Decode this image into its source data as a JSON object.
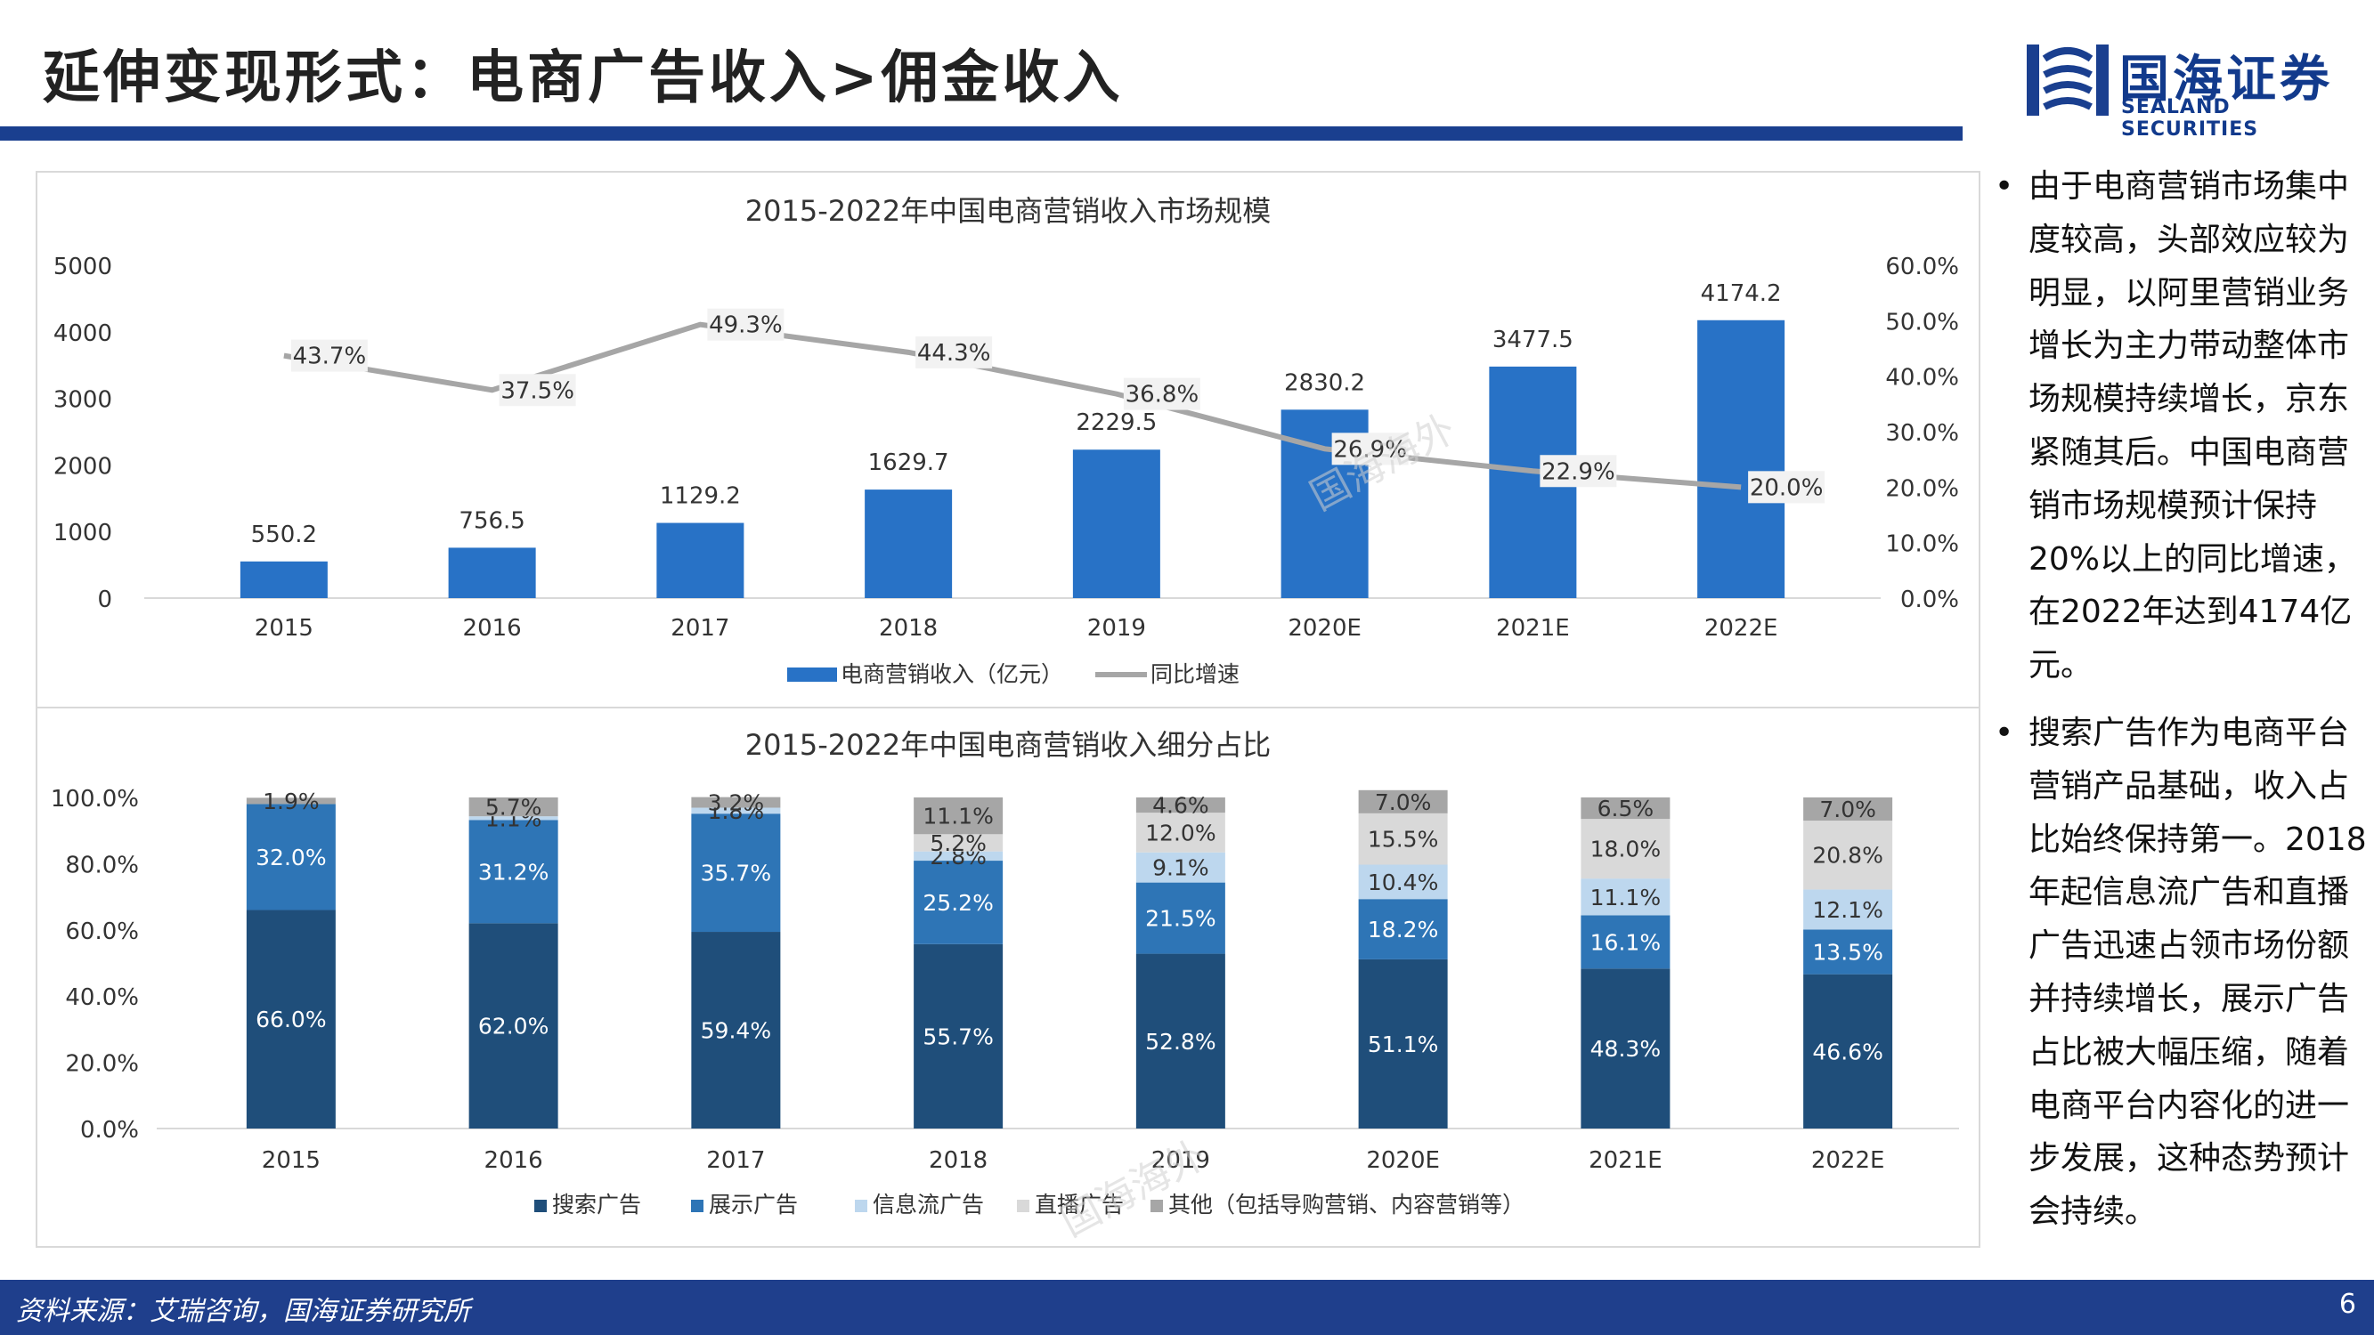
{
  "slide_title": "延伸变现形式：电商广告收入>佣金收入",
  "logo": {
    "cn": "国海证券",
    "en": "SEALAND SECURITIES"
  },
  "bullets": [
    "由于电商营销市场集中度较高，头部效应较为明显，以阿里营销业务增长为主力带动整体市场规模持续增长，京东紧随其后。中国电商营销市场规模预计保持20%以上的同比增速，在2022年达到4174亿元。",
    "搜索广告作为电商平台营销产品基础，收入占比始终保持第一。2018年起信息流广告和直播广告迅速占领市场份额并持续增长，展示广告占比被大幅压缩，随着电商平台内容化的进一步发展，这种态势预计会持续。"
  ],
  "watermark": "国海海外",
  "footer": {
    "source": "资料来源：艾瑞咨询，国海证券研究所",
    "page": "6"
  },
  "colors": {
    "bar": "#2872c6",
    "line": "#a6a6a6",
    "search": "#1f4e7a",
    "display": "#2e75b6",
    "feed": "#bdd7ee",
    "live": "#d9d9d9",
    "other": "#a6a6a6",
    "brand": "#1a3f8f"
  },
  "chart_data": [
    {
      "type": "bar",
      "title": "2015-2022年中国电商营销收入市场规模",
      "categories": [
        "2015",
        "2016",
        "2017",
        "2018",
        "2019",
        "2020E",
        "2021E",
        "2022E"
      ],
      "series": [
        {
          "name": "电商营销收入（亿元）",
          "type": "bar",
          "axis": "left",
          "values": [
            550.2,
            756.5,
            1129.2,
            1629.7,
            2229.5,
            2830.2,
            3477.5,
            4174.2
          ],
          "labels": [
            "550.2",
            "756.5",
            "1129.2",
            "1629.7",
            "2229.5",
            "2830.2",
            "3477.5",
            "4174.2"
          ]
        },
        {
          "name": "同比增速",
          "type": "line",
          "axis": "right",
          "values": [
            43.7,
            37.5,
            49.3,
            44.3,
            36.8,
            26.9,
            22.9,
            20.0
          ],
          "labels": [
            "43.7%",
            "37.5%",
            "49.3%",
            "44.3%",
            "36.8%",
            "26.9%",
            "22.9%",
            "20.0%"
          ]
        }
      ],
      "yleft": {
        "range": [
          0,
          5000
        ],
        "ticks": [
          "5000",
          "4000",
          "3000",
          "2000",
          "1000",
          "0"
        ]
      },
      "yright": {
        "range": [
          0,
          60
        ],
        "ticks": [
          "60.0%",
          "50.0%",
          "40.0%",
          "30.0%",
          "20.0%",
          "10.0%",
          "0.0%"
        ]
      },
      "legend_position": "bottom",
      "grid": false
    },
    {
      "type": "bar",
      "stacked": true,
      "title": "2015-2022年中国电商营销收入细分占比",
      "categories": [
        "2015",
        "2016",
        "2017",
        "2018",
        "2019",
        "2020E",
        "2021E",
        "2022E"
      ],
      "series": [
        {
          "name": "搜索广告",
          "values": [
            66.0,
            62.0,
            59.4,
            55.7,
            52.8,
            51.1,
            48.3,
            46.6
          ],
          "labels": [
            "66.0%",
            "62.0%",
            "59.4%",
            "55.7%",
            "52.8%",
            "51.1%",
            "48.3%",
            "46.6%"
          ]
        },
        {
          "name": "展示广告",
          "values": [
            32.0,
            31.2,
            35.7,
            25.2,
            21.5,
            18.2,
            16.1,
            13.5
          ],
          "labels": [
            "32.0%",
            "31.2%",
            "35.7%",
            "25.2%",
            "21.5%",
            "18.2%",
            "16.1%",
            "13.5%"
          ]
        },
        {
          "name": "信息流广告",
          "values": [
            0,
            1.1,
            1.8,
            2.8,
            9.1,
            10.4,
            11.1,
            12.1
          ],
          "labels": [
            "",
            "1.1%",
            "1.8%",
            "2.8%",
            "9.1%",
            "10.4%",
            "11.1%",
            "12.1%"
          ]
        },
        {
          "name": "直播广告",
          "values": [
            0,
            0,
            0,
            5.2,
            12.0,
            15.5,
            18.0,
            20.8
          ],
          "labels": [
            "",
            "",
            "",
            "5.2%",
            "12.0%",
            "15.5%",
            "18.0%",
            "20.8%"
          ]
        },
        {
          "name": "其他（包括导购营销、内容营销等）",
          "values": [
            1.9,
            5.7,
            3.2,
            11.1,
            4.6,
            7.0,
            6.5,
            7.0
          ],
          "labels": [
            "1.9%",
            "5.7%",
            "3.2%",
            "11.1%",
            "4.6%",
            "7.0%",
            "6.5%",
            "7.0%"
          ]
        }
      ],
      "ylim": [
        0,
        100
      ],
      "yticks": [
        "100.0%",
        "80.0%",
        "60.0%",
        "40.0%",
        "20.0%",
        "0.0%"
      ],
      "legend_position": "bottom",
      "grid": false
    }
  ]
}
